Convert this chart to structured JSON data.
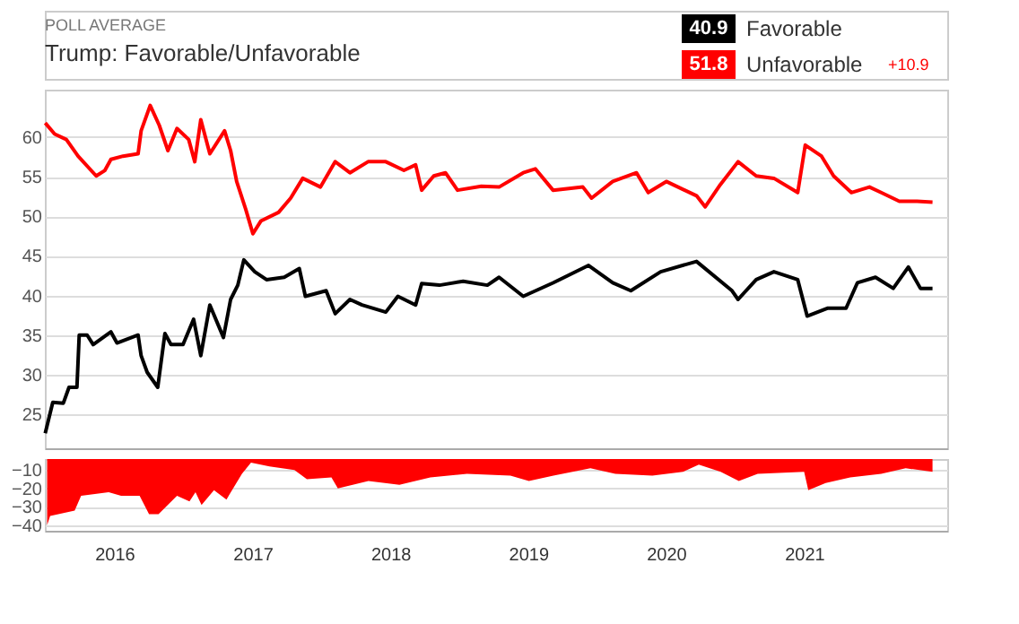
{
  "chart_data": [
    {
      "type": "line",
      "title": "Trump: Favorable/Unfavorable",
      "subtitle": "POLL AVERAGE",
      "annotations": [
        "40.9",
        "51.8",
        "+10.9"
      ],
      "xlim": [
        "2015-07-01",
        "2022-01-15"
      ],
      "ylim": [
        20.7,
        66
      ],
      "yticks": [
        25,
        30,
        35,
        40,
        45,
        50,
        55,
        60
      ],
      "tick_labels": "y",
      "grid": "y",
      "legend": "top right",
      "series": [
        {
          "name": "Favorable",
          "color": "#000000",
          "x": [
            "2015-07-02",
            "2015-07-22",
            "2015-08-19",
            "2015-09-03",
            "2015-09-24",
            "2015-09-30",
            "2015-10-21",
            "2015-11-06",
            "2015-12-23",
            "2016-01-08",
            "2016-03-04",
            "2016-03-12",
            "2016-03-28",
            "2016-04-25",
            "2016-05-14",
            "2016-05-30",
            "2016-07-01",
            "2016-07-29",
            "2016-08-17",
            "2016-09-10",
            "2016-10-16",
            "2016-11-04",
            "2016-11-23",
            "2016-12-09",
            "2017-01-07",
            "2017-02-07",
            "2017-03-26",
            "2017-05-05",
            "2017-05-21",
            "2017-07-15",
            "2017-08-08",
            "2017-09-16",
            "2017-10-18",
            "2017-12-20",
            "2018-01-21",
            "2018-03-09",
            "2018-03-25",
            "2018-05-11",
            "2018-07-13",
            "2018-09-15",
            "2018-10-16",
            "2018-12-19",
            "2019-03-08",
            "2019-06-10",
            "2019-08-13",
            "2019-09-30",
            "2019-12-18",
            "2020-03-22",
            "2020-06-24",
            "2020-07-10",
            "2020-08-27",
            "2020-10-13",
            "2020-12-15",
            "2021-01-09",
            "2021-03-05",
            "2021-04-22",
            "2021-05-22",
            "2021-07-09",
            "2021-08-25",
            "2021-10-04",
            "2021-11-05",
            "2021-12-07"
          ],
          "values": [
            22.6,
            26.5,
            26.4,
            28.4,
            28.4,
            35.0,
            35,
            33.8,
            35.4,
            34,
            35,
            32.4,
            30.3,
            28.4,
            35.2,
            33.8,
            33.8,
            37,
            32.4,
            38.8,
            34.7,
            39.5,
            41.3,
            44.5,
            43,
            42,
            42.3,
            43.4,
            39.9,
            40.6,
            37.7,
            39.5,
            38.8,
            37.9,
            39.9,
            38.8,
            41.5,
            41.3,
            41.8,
            41.3,
            42.3,
            39.9,
            41.6,
            43.8,
            41.6,
            40.6,
            43.0,
            44.3,
            40.6,
            39.5,
            42,
            43,
            42,
            37.4,
            38.4,
            38.4,
            41.6,
            42.3,
            40.9,
            43.6,
            40.9,
            40.9
          ]
        },
        {
          "name": "Unfavorable",
          "color": "#ff0000",
          "x": [
            "2015-07-02",
            "2015-07-27",
            "2015-08-27",
            "2015-09-27",
            "2015-11-14",
            "2015-12-07",
            "2015-12-23",
            "2016-01-24",
            "2016-03-04",
            "2016-03-12",
            "2016-04-05",
            "2016-04-29",
            "2016-05-22",
            "2016-06-15",
            "2016-07-16",
            "2016-08-01",
            "2016-08-17",
            "2016-09-10",
            "2016-10-19",
            "2016-11-04",
            "2016-11-20",
            "2016-12-14",
            "2017-01-02",
            "2017-01-23",
            "2017-03-11",
            "2017-04-12",
            "2017-05-14",
            "2017-06-30",
            "2017-08-08",
            "2017-09-16",
            "2017-11-03",
            "2017-12-20",
            "2018-02-06",
            "2018-03-09",
            "2018-03-25",
            "2018-04-26",
            "2018-05-27",
            "2018-06-28",
            "2018-08-30",
            "2018-10-16",
            "2018-12-19",
            "2019-01-20",
            "2019-03-08",
            "2019-05-26",
            "2019-06-18",
            "2019-08-13",
            "2019-10-15",
            "2019-11-15",
            "2020-01-02",
            "2020-03-22",
            "2020-04-14",
            "2020-05-24",
            "2020-07-10",
            "2020-08-27",
            "2020-10-13",
            "2020-12-15",
            "2021-01-04",
            "2021-02-16",
            "2021-03-20",
            "2021-05-06",
            "2021-06-23",
            "2021-07-24",
            "2021-09-10",
            "2021-10-27",
            "2021-12-07"
          ],
          "values": [
            61.8,
            60.4,
            59.7,
            57.6,
            55.1,
            55.8,
            57.2,
            57.6,
            57.9,
            60.8,
            64,
            61.5,
            58.3,
            61.1,
            59.7,
            56.9,
            62.2,
            57.9,
            60.8,
            58.3,
            54.4,
            50.9,
            47.8,
            49.4,
            50.5,
            52.3,
            54.8,
            53.7,
            56.9,
            55.5,
            56.9,
            56.9,
            55.8,
            56.5,
            53.3,
            55.1,
            55.5,
            53.3,
            53.8,
            53.7,
            55.5,
            56,
            53.3,
            53.7,
            52.3,
            54.4,
            55.5,
            53,
            54.4,
            52.6,
            51.2,
            54,
            56.9,
            55.1,
            54.8,
            53,
            59,
            57.6,
            55.1,
            53,
            53.7,
            53,
            51.9,
            51.9,
            51.8
          ]
        }
      ]
    },
    {
      "type": "area",
      "color": "#ff0000",
      "xlim": [
        "2015-07-01",
        "2022-01-15"
      ],
      "xticks": [
        {
          "value": "2016-01-01",
          "label": "2016"
        },
        {
          "value": "2017-01-01",
          "label": "2017"
        },
        {
          "value": "2018-01-01",
          "label": "2018"
        },
        {
          "value": "2019-01-01",
          "label": "2019"
        },
        {
          "value": "2020-01-01",
          "label": "2020"
        },
        {
          "value": "2021-01-01",
          "label": "2021"
        }
      ],
      "ylim": [
        -43,
        -4
      ],
      "yticks": [
        -40,
        -30,
        -20,
        -10
      ],
      "grid": "y",
      "x": [
        "2015-07-07",
        "2015-07-15",
        "2015-09-18",
        "2015-10-05",
        "2015-12-17",
        "2016-01-19",
        "2016-03-08",
        "2016-04-02",
        "2016-04-27",
        "2016-06-15",
        "2016-07-18",
        "2016-08-03",
        "2016-08-19",
        "2016-09-21",
        "2016-10-24",
        "2016-12-04",
        "2016-12-28",
        "2017-02-15",
        "2017-04-22",
        "2017-05-25",
        "2017-07-29",
        "2017-08-15",
        "2017-11-04",
        "2018-01-25",
        "2018-04-17",
        "2018-07-23",
        "2018-11-15",
        "2019-01-03",
        "2019-03-09",
        "2019-06-15",
        "2019-08-20",
        "2019-11-26",
        "2020-02-15",
        "2020-03-28",
        "2020-05-25",
        "2020-07-12",
        "2020-08-31",
        "2021-01-01",
        "2021-01-12",
        "2021-02-27",
        "2021-05-03",
        "2021-07-24",
        "2021-09-27",
        "2021-12-07"
      ],
      "values": [
        -40,
        -35,
        -32,
        -24,
        -22,
        -24,
        -24,
        -34,
        -34,
        -24,
        -27,
        -22,
        -29,
        -21,
        -26,
        -12,
        -6,
        -8,
        -10,
        -15,
        -14,
        -20,
        -16,
        -18,
        -14,
        -12,
        -13,
        -16,
        -13,
        -9,
        -12,
        -13,
        -11,
        -7,
        -11,
        -16,
        -12,
        -11,
        -21,
        -17,
        -14,
        -12,
        -9,
        -11
      ]
    }
  ]
}
